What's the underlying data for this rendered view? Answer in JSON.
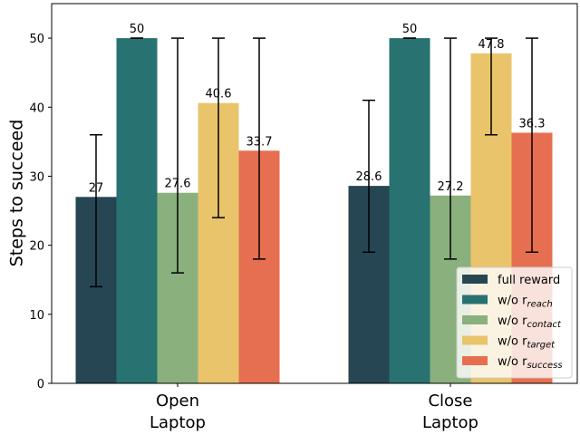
{
  "chart_data": {
    "type": "bar",
    "title": "",
    "xlabel": "",
    "ylabel": "Steps to succeed",
    "ylim": [
      0,
      55
    ],
    "yticks": [
      0,
      10,
      20,
      30,
      40,
      50
    ],
    "grid": false,
    "legend_position": "bottom-right",
    "categories": [
      {
        "line1": "Open",
        "line2": "Laptop"
      },
      {
        "line1": "Close",
        "line2": "Laptop"
      }
    ],
    "series": [
      {
        "name": "full reward",
        "base": "full reward",
        "sub": "",
        "color": "#264653",
        "values": [
          27,
          28.6
        ],
        "labels": [
          "27",
          "28.6"
        ],
        "err_low": [
          14,
          19
        ],
        "err_high": [
          36,
          41
        ]
      },
      {
        "name": "w/o r_reach",
        "base": "w/o r",
        "sub": "reach",
        "color": "#287271",
        "values": [
          50,
          50
        ],
        "labels": [
          "50",
          "50"
        ],
        "err_low": [
          50,
          50
        ],
        "err_high": [
          50,
          50
        ]
      },
      {
        "name": "w/o r_contact",
        "base": "w/o r",
        "sub": "contact",
        "color": "#8AB17D",
        "values": [
          27.6,
          27.2
        ],
        "labels": [
          "27.6",
          "27.2"
        ],
        "err_low": [
          16,
          18
        ],
        "err_high": [
          50,
          50
        ]
      },
      {
        "name": "w/o r_target",
        "base": "w/o r",
        "sub": "target",
        "color": "#E9C46A",
        "values": [
          40.6,
          47.8
        ],
        "labels": [
          "40.6",
          "47.8"
        ],
        "err_low": [
          24,
          36
        ],
        "err_high": [
          50,
          50
        ]
      },
      {
        "name": "w/o r_success",
        "base": "w/o r",
        "sub": "success",
        "color": "#E76F51",
        "values": [
          33.7,
          36.3
        ],
        "labels": [
          "33.7",
          "36.3"
        ],
        "err_low": [
          18,
          19
        ],
        "err_high": [
          50,
          50
        ]
      }
    ]
  }
}
